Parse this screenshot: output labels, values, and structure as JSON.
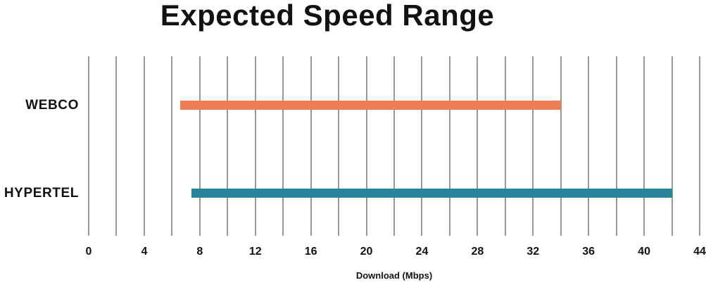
{
  "title": "Expected Speed Range",
  "colors": {
    "background": "#ffffff",
    "text": "#121212",
    "gridline": "#9b9892",
    "webco_bar": "#f07e55",
    "hypertel_bar": "#27849a"
  },
  "chart_data": {
    "type": "bar",
    "orientation": "horizontal-range",
    "title": "Expected Speed Range",
    "xlabel": "Download (Mbps)",
    "ylabel": "",
    "xlim": [
      0,
      44
    ],
    "grid": true,
    "gridline_step": 2,
    "tick_label_step": 4,
    "tick_labels": [
      "0",
      "4",
      "8",
      "12",
      "16",
      "20",
      "24",
      "28",
      "32",
      "36",
      "40",
      "44"
    ],
    "categories": [
      "WEBCO",
      "HYPERTEL"
    ],
    "series": [
      {
        "name": "WEBCO",
        "range_min": 6.6,
        "range_max": 34,
        "color": "#f07e55"
      },
      {
        "name": "HYPERTEL",
        "range_min": 7.4,
        "range_max": 42,
        "color": "#27849a"
      }
    ],
    "legend_position": "none"
  }
}
